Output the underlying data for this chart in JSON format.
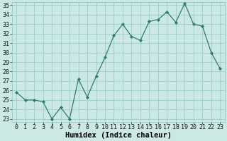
{
  "x": [
    0,
    1,
    2,
    3,
    4,
    5,
    6,
    7,
    8,
    9,
    10,
    11,
    12,
    13,
    14,
    15,
    16,
    17,
    18,
    19,
    20,
    21,
    22,
    23
  ],
  "y": [
    25.8,
    25.0,
    25.0,
    24.8,
    23.0,
    24.2,
    23.0,
    27.2,
    25.3,
    27.5,
    29.5,
    31.8,
    33.0,
    31.7,
    31.3,
    33.3,
    33.5,
    34.3,
    33.2,
    35.2,
    33.0,
    32.8,
    30.0,
    28.3
  ],
  "line_color": "#2d7d6e",
  "marker_color": "#2d7d6e",
  "bg_color": "#cce8e5",
  "grid_color": "#8ecbc5",
  "xlabel": "Humidex (Indice chaleur)",
  "ylim_min": 23,
  "ylim_max": 35,
  "xlim_min": -0.5,
  "xlim_max": 23.5,
  "yticks": [
    23,
    24,
    25,
    26,
    27,
    28,
    29,
    30,
    31,
    32,
    33,
    34,
    35
  ],
  "xticks": [
    0,
    1,
    2,
    3,
    4,
    5,
    6,
    7,
    8,
    9,
    10,
    11,
    12,
    13,
    14,
    15,
    16,
    17,
    18,
    19,
    20,
    21,
    22,
    23
  ],
  "xlabel_fontsize": 7.5,
  "tick_fontsize": 6.0,
  "line_width": 0.9,
  "marker_size": 2.2
}
